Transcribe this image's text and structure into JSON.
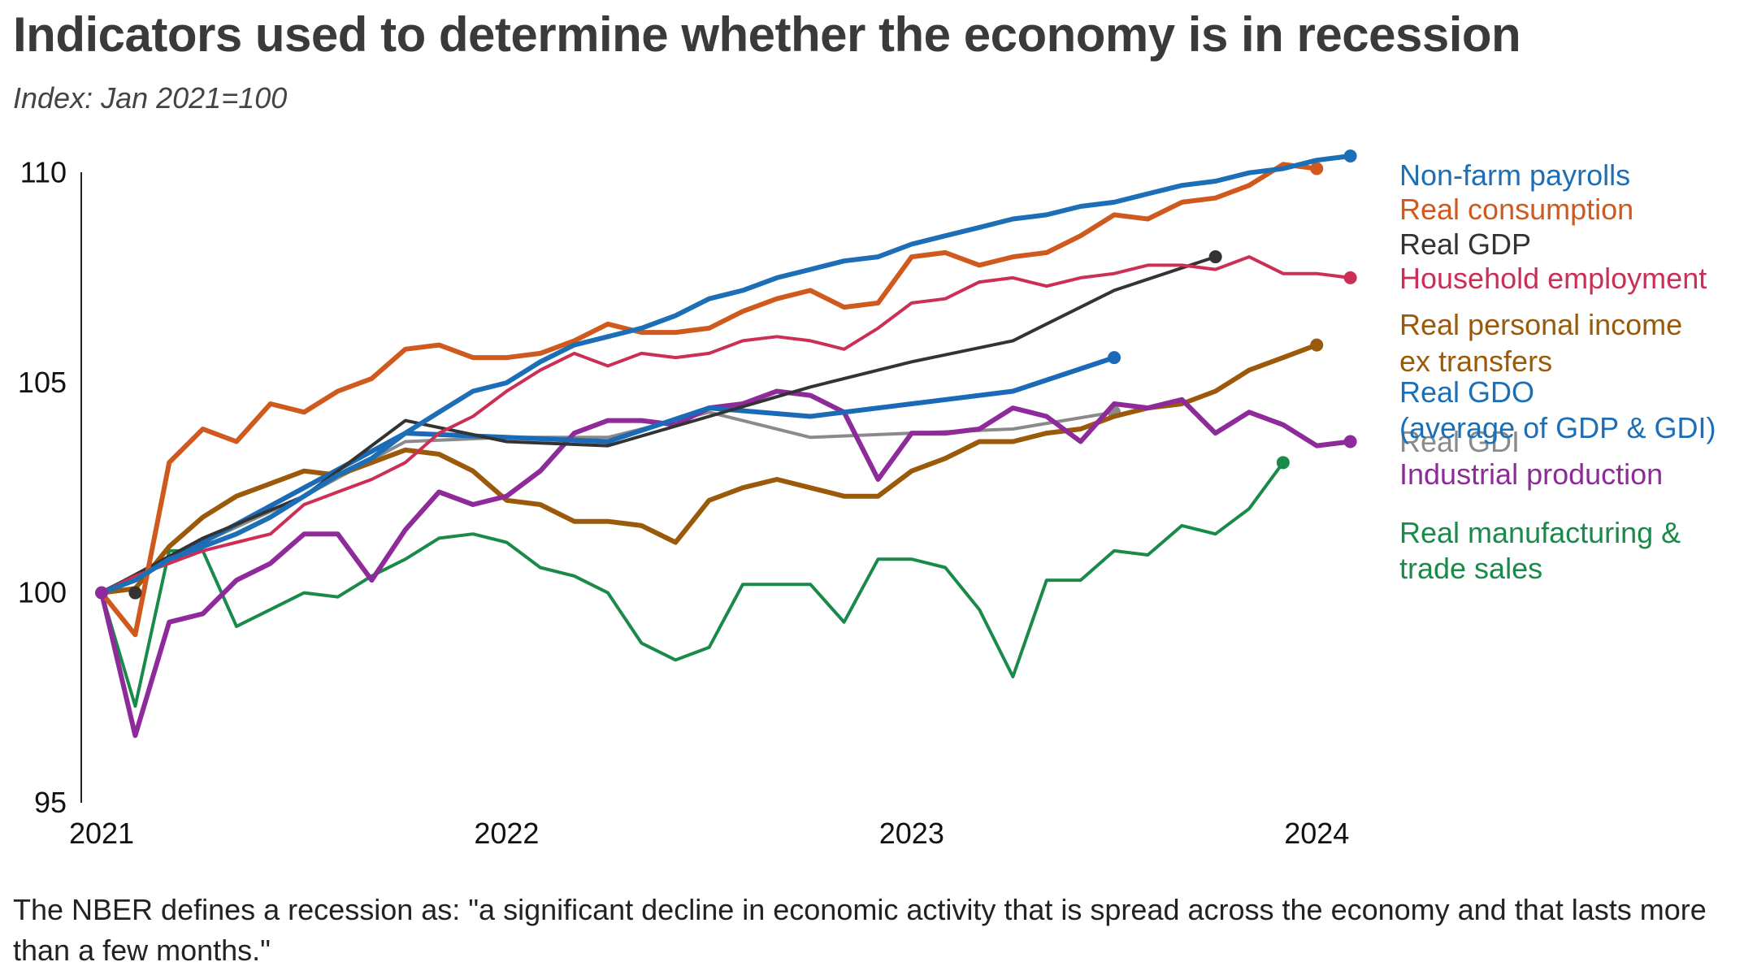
{
  "title": "Indicators used to determine whether the economy is in recession",
  "subtitle": "Index: Jan 2021=100",
  "footnote": "The NBER defines a recession as: \"a significant decline in economic activity that is spread across the economy and that lasts more than a few months.\"",
  "chart_data": {
    "type": "line",
    "title": "Indicators used to determine whether the economy is in recession",
    "subtitle": "Index: Jan 2021=100",
    "xlabel": "",
    "ylabel": "",
    "x_ticks": [
      2021,
      2022,
      2023,
      2024
    ],
    "y_ticks": [
      95,
      100,
      105,
      110
    ],
    "ylim": [
      95,
      110.4
    ],
    "xlim": [
      2021.0,
      2024.15
    ],
    "grid": false,
    "legend": "direct labels at right",
    "series": [
      {
        "name": "Real manufacturing & trade sales",
        "color": "#1a8a4a",
        "width": 4,
        "points": [
          [
            2021.0,
            100.0
          ],
          [
            2021.083,
            97.3
          ],
          [
            2021.167,
            101.0
          ],
          [
            2021.25,
            101.0
          ],
          [
            2021.333,
            99.2
          ],
          [
            2021.417,
            99.6
          ],
          [
            2021.5,
            100.0
          ],
          [
            2021.583,
            99.9
          ],
          [
            2021.667,
            100.4
          ],
          [
            2021.75,
            100.8
          ],
          [
            2021.833,
            101.3
          ],
          [
            2021.917,
            101.4
          ],
          [
            2022.0,
            101.2
          ],
          [
            2022.083,
            100.6
          ],
          [
            2022.167,
            100.4
          ],
          [
            2022.25,
            100.0
          ],
          [
            2022.333,
            98.8
          ],
          [
            2022.417,
            98.4
          ],
          [
            2022.5,
            98.7
          ],
          [
            2022.583,
            100.2
          ],
          [
            2022.667,
            100.2
          ],
          [
            2022.75,
            100.2
          ],
          [
            2022.833,
            99.3
          ],
          [
            2022.917,
            100.8
          ],
          [
            2023.0,
            100.8
          ],
          [
            2023.083,
            100.6
          ],
          [
            2023.167,
            99.6
          ],
          [
            2023.25,
            98.0
          ],
          [
            2023.333,
            100.3
          ],
          [
            2023.417,
            100.3
          ],
          [
            2023.5,
            101.0
          ],
          [
            2023.583,
            100.9
          ],
          [
            2023.667,
            101.6
          ],
          [
            2023.75,
            101.4
          ],
          [
            2023.833,
            102.0
          ],
          [
            2023.917,
            103.1
          ]
        ]
      },
      {
        "name": "Real GDI",
        "color": "#8a8a8a",
        "width": 4,
        "points": [
          [
            2021.0,
            100.0
          ],
          [
            2021.25,
            101.2
          ],
          [
            2021.5,
            102.3
          ],
          [
            2021.75,
            103.6
          ],
          [
            2022.0,
            103.7
          ],
          [
            2022.25,
            103.7
          ],
          [
            2022.5,
            104.3
          ],
          [
            2022.75,
            103.7
          ],
          [
            2023.0,
            103.8
          ],
          [
            2023.25,
            103.9
          ],
          [
            2023.5,
            104.3
          ]
        ]
      },
      {
        "name": "Real personal income ex transfers",
        "color": "#9a5a0a",
        "width": 6,
        "points": [
          [
            2021.0,
            100.0
          ],
          [
            2021.083,
            100.1
          ],
          [
            2021.167,
            101.1
          ],
          [
            2021.25,
            101.8
          ],
          [
            2021.333,
            102.3
          ],
          [
            2021.417,
            102.6
          ],
          [
            2021.5,
            102.9
          ],
          [
            2021.583,
            102.8
          ],
          [
            2021.667,
            103.1
          ],
          [
            2021.75,
            103.4
          ],
          [
            2021.833,
            103.3
          ],
          [
            2021.917,
            102.9
          ],
          [
            2022.0,
            102.2
          ],
          [
            2022.083,
            102.1
          ],
          [
            2022.167,
            101.7
          ],
          [
            2022.25,
            101.7
          ],
          [
            2022.333,
            101.6
          ],
          [
            2022.417,
            101.2
          ],
          [
            2022.5,
            102.2
          ],
          [
            2022.583,
            102.5
          ],
          [
            2022.667,
            102.7
          ],
          [
            2022.75,
            102.5
          ],
          [
            2022.833,
            102.3
          ],
          [
            2022.917,
            102.3
          ],
          [
            2023.0,
            102.9
          ],
          [
            2023.083,
            103.2
          ],
          [
            2023.167,
            103.6
          ],
          [
            2023.25,
            103.6
          ],
          [
            2023.333,
            103.8
          ],
          [
            2023.417,
            103.9
          ],
          [
            2023.5,
            104.2
          ],
          [
            2023.583,
            104.4
          ],
          [
            2023.667,
            104.5
          ],
          [
            2023.75,
            104.8
          ],
          [
            2023.833,
            105.3
          ],
          [
            2023.917,
            105.6
          ],
          [
            2024.0,
            105.9
          ]
        ]
      },
      {
        "name": "Industrial production",
        "color": "#8e2a9a",
        "width": 6,
        "points": [
          [
            2021.0,
            100.0
          ],
          [
            2021.083,
            96.6
          ],
          [
            2021.167,
            99.3
          ],
          [
            2021.25,
            99.5
          ],
          [
            2021.333,
            100.3
          ],
          [
            2021.417,
            100.7
          ],
          [
            2021.5,
            101.4
          ],
          [
            2021.583,
            101.4
          ],
          [
            2021.667,
            100.3
          ],
          [
            2021.75,
            101.5
          ],
          [
            2021.833,
            102.4
          ],
          [
            2021.917,
            102.1
          ],
          [
            2022.0,
            102.3
          ],
          [
            2022.083,
            102.9
          ],
          [
            2022.167,
            103.8
          ],
          [
            2022.25,
            104.1
          ],
          [
            2022.333,
            104.1
          ],
          [
            2022.417,
            104.0
          ],
          [
            2022.5,
            104.4
          ],
          [
            2022.583,
            104.5
          ],
          [
            2022.667,
            104.8
          ],
          [
            2022.75,
            104.7
          ],
          [
            2022.833,
            104.3
          ],
          [
            2022.917,
            102.7
          ],
          [
            2023.0,
            103.8
          ],
          [
            2023.083,
            103.8
          ],
          [
            2023.167,
            103.9
          ],
          [
            2023.25,
            104.4
          ],
          [
            2023.333,
            104.2
          ],
          [
            2023.417,
            103.6
          ],
          [
            2023.5,
            104.5
          ],
          [
            2023.583,
            104.4
          ],
          [
            2023.667,
            104.6
          ],
          [
            2023.75,
            103.8
          ],
          [
            2023.833,
            104.3
          ],
          [
            2023.917,
            104.0
          ],
          [
            2024.0,
            103.5
          ],
          [
            2024.083,
            103.6
          ]
        ]
      },
      {
        "name": "Real GDO (average of GDP & GDI)",
        "color": "#1a6ab8",
        "width": 6,
        "points": [
          [
            2021.0,
            100.0
          ],
          [
            2021.25,
            101.2
          ],
          [
            2021.5,
            102.5
          ],
          [
            2021.75,
            103.8
          ],
          [
            2022.0,
            103.7
          ],
          [
            2022.25,
            103.6
          ],
          [
            2022.5,
            104.4
          ],
          [
            2022.75,
            104.2
          ],
          [
            2023.0,
            104.5
          ],
          [
            2023.25,
            104.8
          ],
          [
            2023.5,
            105.6
          ]
        ]
      },
      {
        "name": "Real GDP",
        "color": "#333333",
        "width": 4,
        "points": [
          [
            2021.0,
            100.0
          ],
          [
            2021.25,
            101.3
          ],
          [
            2021.5,
            102.3
          ],
          [
            2021.75,
            104.1
          ],
          [
            2022.0,
            103.6
          ],
          [
            2022.25,
            103.5
          ],
          [
            2022.5,
            104.2
          ],
          [
            2022.75,
            104.9
          ],
          [
            2023.0,
            105.5
          ],
          [
            2023.25,
            106.0
          ],
          [
            2023.5,
            107.2
          ],
          [
            2023.75,
            108.0
          ]
        ]
      },
      {
        "name": "Household employment",
        "color": "#cc2f55",
        "width": 4,
        "points": [
          [
            2021.0,
            100.0
          ],
          [
            2021.083,
            100.4
          ],
          [
            2021.167,
            100.7
          ],
          [
            2021.25,
            101.0
          ],
          [
            2021.333,
            101.2
          ],
          [
            2021.417,
            101.4
          ],
          [
            2021.5,
            102.1
          ],
          [
            2021.583,
            102.4
          ],
          [
            2021.667,
            102.7
          ],
          [
            2021.75,
            103.1
          ],
          [
            2021.833,
            103.8
          ],
          [
            2021.917,
            104.2
          ],
          [
            2022.0,
            104.8
          ],
          [
            2022.083,
            105.3
          ],
          [
            2022.167,
            105.7
          ],
          [
            2022.25,
            105.4
          ],
          [
            2022.333,
            105.7
          ],
          [
            2022.417,
            105.6
          ],
          [
            2022.5,
            105.7
          ],
          [
            2022.583,
            106.0
          ],
          [
            2022.667,
            106.1
          ],
          [
            2022.75,
            106.0
          ],
          [
            2022.833,
            105.8
          ],
          [
            2022.917,
            106.3
          ],
          [
            2023.0,
            106.9
          ],
          [
            2023.083,
            107.0
          ],
          [
            2023.167,
            107.4
          ],
          [
            2023.25,
            107.5
          ],
          [
            2023.333,
            107.3
          ],
          [
            2023.417,
            107.5
          ],
          [
            2023.5,
            107.6
          ],
          [
            2023.583,
            107.8
          ],
          [
            2023.667,
            107.8
          ],
          [
            2023.75,
            107.7
          ],
          [
            2023.833,
            108.0
          ],
          [
            2023.917,
            107.6
          ],
          [
            2024.0,
            107.6
          ],
          [
            2024.083,
            107.5
          ]
        ]
      },
      {
        "name": "Real consumption",
        "color": "#d05a1e",
        "width": 6,
        "points": [
          [
            2021.0,
            100.0
          ],
          [
            2021.083,
            99.0
          ],
          [
            2021.167,
            103.1
          ],
          [
            2021.25,
            103.9
          ],
          [
            2021.333,
            103.6
          ],
          [
            2021.417,
            104.5
          ],
          [
            2021.5,
            104.3
          ],
          [
            2021.583,
            104.8
          ],
          [
            2021.667,
            105.1
          ],
          [
            2021.75,
            105.8
          ],
          [
            2021.833,
            105.9
          ],
          [
            2021.917,
            105.6
          ],
          [
            2022.0,
            105.6
          ],
          [
            2022.083,
            105.7
          ],
          [
            2022.167,
            106.0
          ],
          [
            2022.25,
            106.4
          ],
          [
            2022.333,
            106.2
          ],
          [
            2022.417,
            106.2
          ],
          [
            2022.5,
            106.3
          ],
          [
            2022.583,
            106.7
          ],
          [
            2022.667,
            107.0
          ],
          [
            2022.75,
            107.2
          ],
          [
            2022.833,
            106.8
          ],
          [
            2022.917,
            106.9
          ],
          [
            2023.0,
            108.0
          ],
          [
            2023.083,
            108.1
          ],
          [
            2023.167,
            107.8
          ],
          [
            2023.25,
            108.0
          ],
          [
            2023.333,
            108.1
          ],
          [
            2023.417,
            108.5
          ],
          [
            2023.5,
            109.0
          ],
          [
            2023.583,
            108.9
          ],
          [
            2023.667,
            109.3
          ],
          [
            2023.75,
            109.4
          ],
          [
            2023.833,
            109.7
          ],
          [
            2023.917,
            110.2
          ],
          [
            2024.0,
            110.1
          ]
        ]
      },
      {
        "name": "Non-farm payrolls",
        "color": "#1c6fb6",
        "width": 6,
        "points": [
          [
            2021.0,
            100.0
          ],
          [
            2021.083,
            100.3
          ],
          [
            2021.167,
            100.8
          ],
          [
            2021.25,
            101.1
          ],
          [
            2021.333,
            101.4
          ],
          [
            2021.417,
            101.8
          ],
          [
            2021.5,
            102.3
          ],
          [
            2021.583,
            102.8
          ],
          [
            2021.667,
            103.2
          ],
          [
            2021.75,
            103.8
          ],
          [
            2021.833,
            104.3
          ],
          [
            2021.917,
            104.8
          ],
          [
            2022.0,
            105.0
          ],
          [
            2022.083,
            105.5
          ],
          [
            2022.167,
            105.9
          ],
          [
            2022.25,
            106.1
          ],
          [
            2022.333,
            106.3
          ],
          [
            2022.417,
            106.6
          ],
          [
            2022.5,
            107.0
          ],
          [
            2022.583,
            107.2
          ],
          [
            2022.667,
            107.5
          ],
          [
            2022.75,
            107.7
          ],
          [
            2022.833,
            107.9
          ],
          [
            2022.917,
            108.0
          ],
          [
            2023.0,
            108.3
          ],
          [
            2023.083,
            108.5
          ],
          [
            2023.167,
            108.7
          ],
          [
            2023.25,
            108.9
          ],
          [
            2023.333,
            109.0
          ],
          [
            2023.417,
            109.2
          ],
          [
            2023.5,
            109.3
          ],
          [
            2023.583,
            109.5
          ],
          [
            2023.667,
            109.7
          ],
          [
            2023.75,
            109.8
          ],
          [
            2023.833,
            110.0
          ],
          [
            2023.917,
            110.1
          ],
          [
            2024.0,
            110.3
          ],
          [
            2024.083,
            110.4
          ]
        ]
      }
    ],
    "end_labels": [
      {
        "lines": [
          "Non-farm payrolls"
        ],
        "color": "#1c6fb6"
      },
      {
        "lines": [
          "Real consumption"
        ],
        "color": "#d05a1e"
      },
      {
        "lines": [
          "Real GDP"
        ],
        "color": "#333333"
      },
      {
        "lines": [
          "Household employment"
        ],
        "color": "#cc2f55"
      },
      {
        "lines": [
          "Real personal income",
          "ex transfers"
        ],
        "color": "#9a5a0a"
      },
      {
        "lines": [
          "Real GDI"
        ],
        "color": "#8a8a8a"
      },
      {
        "lines": [
          "Real GDO",
          "(average of GDP & GDI)"
        ],
        "color": "#1c6fb6"
      },
      {
        "lines": [
          "Industrial production"
        ],
        "color": "#8e2a9a"
      },
      {
        "lines": [
          "Real manufacturing &",
          "trade sales"
        ],
        "color": "#1a8a4a"
      }
    ]
  }
}
